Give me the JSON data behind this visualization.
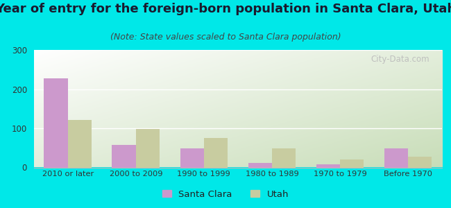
{
  "title": "Year of entry for the foreign-born population in Santa Clara, Utah",
  "subtitle": "(Note: State values scaled to Santa Clara population)",
  "categories": [
    "2010 or later",
    "2000 to 2009",
    "1990 to 1999",
    "1980 to 1989",
    "1970 to 1979",
    "Before 1970"
  ],
  "santa_clara": [
    228,
    57,
    48,
    12,
    8,
    48
  ],
  "utah": [
    122,
    98,
    75,
    48,
    20,
    28
  ],
  "santa_clara_color": "#cc99cc",
  "utah_color": "#c8cca0",
  "background_outer": "#00e8e8",
  "ylim": [
    0,
    300
  ],
  "yticks": [
    0,
    100,
    200,
    300
  ],
  "bar_width": 0.35,
  "title_fontsize": 13,
  "subtitle_fontsize": 9,
  "legend_labels": [
    "Santa Clara",
    "Utah"
  ],
  "watermark": "City-Data.com",
  "plot_bg_top_left": "#ffffff",
  "plot_bg_bottom_right": "#c8ddb8"
}
